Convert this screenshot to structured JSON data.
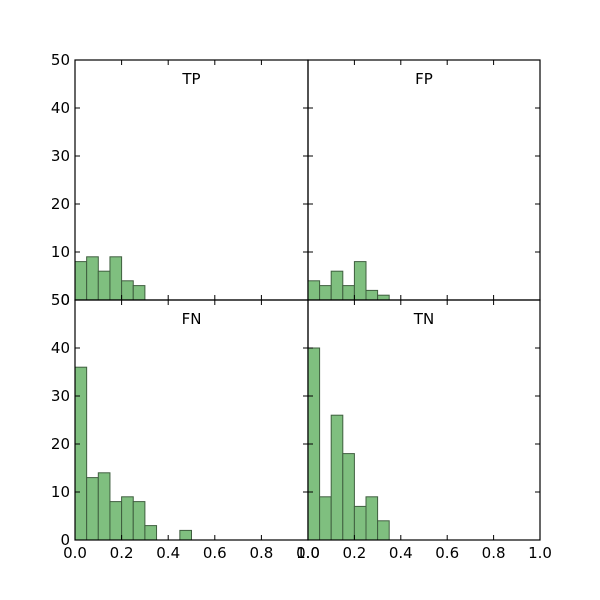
{
  "colors": {
    "bar_fill": "#7fbf7f",
    "bar_edge": "#3f5f3f",
    "axes": "#000000",
    "background": "#ffffff"
  },
  "chart_data": [
    {
      "type": "bar",
      "panel": "top-left",
      "title": "TP",
      "bin_width": 0.05,
      "x_starts": [
        0.0,
        0.05,
        0.1,
        0.15,
        0.2,
        0.25
      ],
      "values": [
        8,
        9,
        6,
        9,
        4,
        3
      ],
      "xlim": [
        0,
        1
      ],
      "ylim": [
        0,
        50
      ],
      "yticks": [
        "0",
        "10",
        "20",
        "30",
        "40",
        "50"
      ],
      "show_xticklabels": false,
      "show_yticklabels": true,
      "grid": false
    },
    {
      "type": "bar",
      "panel": "top-right",
      "title": "FP",
      "bin_width": 0.05,
      "x_starts": [
        0.0,
        0.05,
        0.1,
        0.15,
        0.2,
        0.25,
        0.3
      ],
      "values": [
        4,
        3,
        6,
        3,
        8,
        2,
        1
      ],
      "xlim": [
        0,
        1
      ],
      "ylim": [
        0,
        50
      ],
      "show_xticklabels": false,
      "show_yticklabels": false,
      "grid": false
    },
    {
      "type": "bar",
      "panel": "bottom-left",
      "title": "FN",
      "bin_width": 0.05,
      "x_starts": [
        0.0,
        0.05,
        0.1,
        0.15,
        0.2,
        0.25,
        0.3,
        0.45
      ],
      "values": [
        36,
        13,
        14,
        8,
        9,
        8,
        3,
        2
      ],
      "xlim": [
        0,
        1
      ],
      "ylim": [
        0,
        50
      ],
      "xticks": [
        "0.0",
        "0.2",
        "0.4",
        "0.6",
        "0.8",
        "1.0"
      ],
      "yticks": [
        "0",
        "10",
        "20",
        "30",
        "40",
        "50"
      ],
      "show_xticklabels": true,
      "show_yticklabels": true,
      "grid": false
    },
    {
      "type": "bar",
      "panel": "bottom-right",
      "title": "TN",
      "bin_width": 0.05,
      "x_starts": [
        0.0,
        0.05,
        0.1,
        0.15,
        0.2,
        0.25,
        0.3
      ],
      "values": [
        40,
        9,
        26,
        18,
        7,
        9,
        4
      ],
      "xlim": [
        0,
        1
      ],
      "ylim": [
        0,
        50
      ],
      "xticks": [
        "0.0",
        "0.2",
        "0.4",
        "0.6",
        "0.8",
        "1.0"
      ],
      "show_xticklabels": true,
      "show_yticklabels": false,
      "grid": false
    }
  ]
}
